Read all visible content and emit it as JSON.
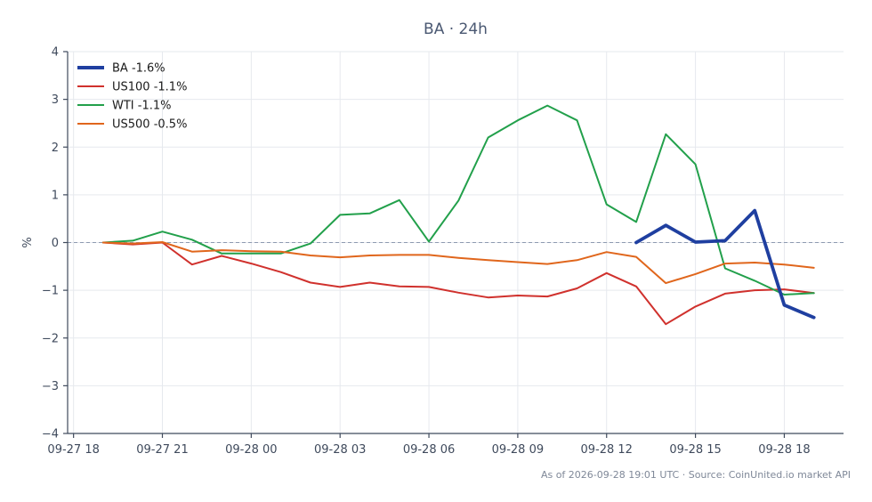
{
  "chart_data": {
    "type": "line",
    "title": "BA · 24h",
    "ylabel": "%",
    "xlabel": "",
    "ylim": [
      -4,
      4
    ],
    "yticks": [
      -4,
      -3,
      -2,
      -1,
      0,
      1,
      2,
      3,
      4
    ],
    "ytick_labels": [
      "−4",
      "−3",
      "−2",
      "−1",
      "0",
      "1",
      "2",
      "3",
      "4"
    ],
    "xticks": [
      "09-27 18",
      "09-27 21",
      "09-28 00",
      "09-28 03",
      "09-28 06",
      "09-28 09",
      "09-28 12",
      "09-28 15",
      "09-28 18"
    ],
    "x_hours_range": [
      -0.2,
      26.0
    ],
    "zero_line": true,
    "grid": true,
    "legend_position": "top-left",
    "series": [
      {
        "name": "BA -1.6%",
        "color": "#1f3fa0",
        "emphasis": true,
        "x": [
          19,
          20,
          21,
          22,
          23,
          24,
          25
        ],
        "values": [
          0.0,
          0.36,
          0.01,
          0.04,
          0.67,
          -1.31,
          -1.57
        ]
      },
      {
        "name": "US100 -1.1%",
        "color": "#d0312d",
        "x": [
          1,
          2,
          3,
          4,
          5,
          6,
          7,
          8,
          9,
          10,
          11,
          12,
          13,
          14,
          15,
          16,
          17,
          18,
          19,
          20,
          21,
          22,
          23,
          24,
          25
        ],
        "values": [
          0.0,
          -0.04,
          0.0,
          -0.46,
          -0.28,
          -0.44,
          -0.62,
          -0.84,
          -0.93,
          -0.84,
          -0.92,
          -0.93,
          -1.05,
          -1.15,
          -1.11,
          -1.13,
          -0.96,
          -0.64,
          -0.92,
          -1.71,
          -1.34,
          -1.07,
          -1.0,
          -0.98,
          -1.06
        ]
      },
      {
        "name": "WTI -1.1%",
        "color": "#22a04b",
        "x": [
          1,
          2,
          3,
          4,
          5,
          6,
          7,
          8,
          9,
          10,
          11,
          12,
          13,
          14,
          15,
          16,
          17,
          18,
          19,
          20,
          21,
          22,
          23,
          24,
          25
        ],
        "values": [
          0.0,
          0.04,
          0.23,
          0.06,
          -0.23,
          -0.23,
          -0.23,
          -0.02,
          0.58,
          0.61,
          0.89,
          0.02,
          0.88,
          2.2,
          2.56,
          2.87,
          2.56,
          0.8,
          0.43,
          2.27,
          1.64,
          -0.54,
          -0.8,
          -1.09,
          -1.06
        ]
      },
      {
        "name": "US500 -0.5%",
        "color": "#e0661c",
        "x": [
          1,
          2,
          3,
          4,
          5,
          6,
          7,
          8,
          9,
          10,
          11,
          12,
          13,
          14,
          15,
          16,
          17,
          18,
          19,
          20,
          21,
          22,
          23,
          24,
          25
        ],
        "values": [
          0.0,
          -0.02,
          0.01,
          -0.19,
          -0.16,
          -0.18,
          -0.19,
          -0.27,
          -0.31,
          -0.27,
          -0.26,
          -0.26,
          -0.32,
          -0.37,
          -0.41,
          -0.45,
          -0.37,
          -0.2,
          -0.3,
          -0.85,
          -0.66,
          -0.44,
          -0.42,
          -0.46,
          -0.53
        ]
      }
    ]
  },
  "footer": "As of 2026-09-28 19:01 UTC · Source: CoinUnited.io market API"
}
